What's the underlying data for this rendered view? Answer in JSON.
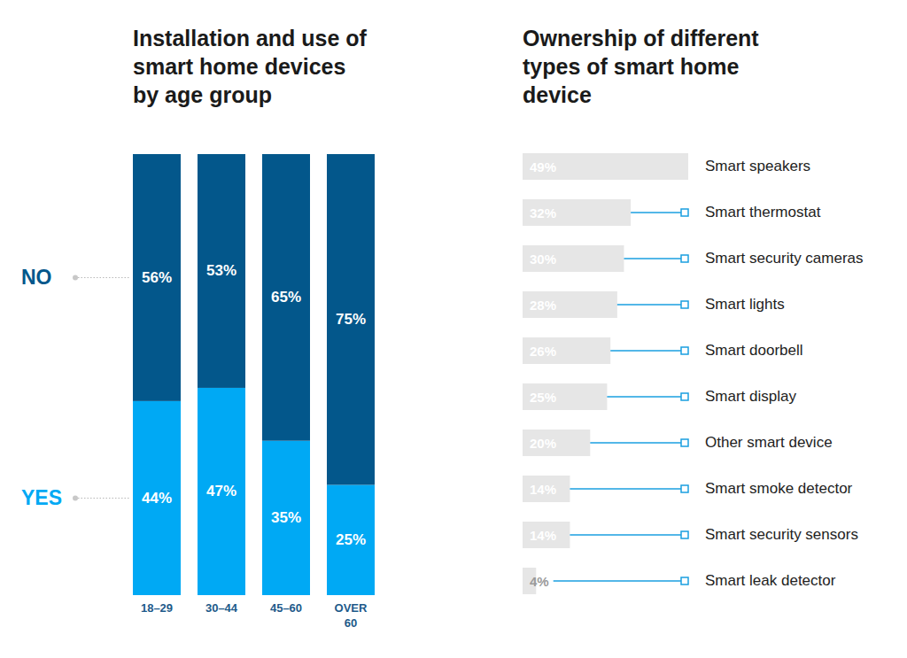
{
  "chart_data": [
    {
      "type": "bar",
      "title": "Installation and use of\nsmart home devices\nby age group",
      "categories": [
        "18–29",
        "30–44",
        "45–60",
        "OVER 60"
      ],
      "series": [
        {
          "name": "YES",
          "color": "#00a9f4",
          "values": [
            44,
            47,
            35,
            25
          ],
          "value_labels": [
            "44%",
            "47%",
            "35%",
            "25%"
          ]
        },
        {
          "name": "NO",
          "color": "#03578b",
          "values": [
            56,
            53,
            65,
            75
          ],
          "value_labels": [
            "56%",
            "53%",
            "65%",
            "75%"
          ]
        }
      ],
      "ylim": [
        0,
        100
      ],
      "stacked": true,
      "data_labels": true,
      "legend": "left",
      "tick_labels": "x"
    },
    {
      "type": "bar",
      "orientation": "horizontal",
      "title": "Ownership of different\ntypes of smart home\ndevice",
      "categories": [
        "Smart speakers",
        "Smart thermostat",
        "Smart security cameras",
        "Smart lights",
        "Smart doorbell",
        "Smart display",
        "Other smart device",
        "Smart smoke detector",
        "Smart security sensors",
        "Smart leak detector"
      ],
      "values": [
        49,
        32,
        30,
        28,
        26,
        25,
        20,
        14,
        14,
        4
      ],
      "value_labels": [
        "49%",
        "32%",
        "30%",
        "28%",
        "26%",
        "25%",
        "20%",
        "14%",
        "14%",
        "4%"
      ],
      "color": "#e6e6e6",
      "xlim": [
        0,
        49
      ],
      "data_labels": true,
      "tick_labels": "y"
    }
  ]
}
